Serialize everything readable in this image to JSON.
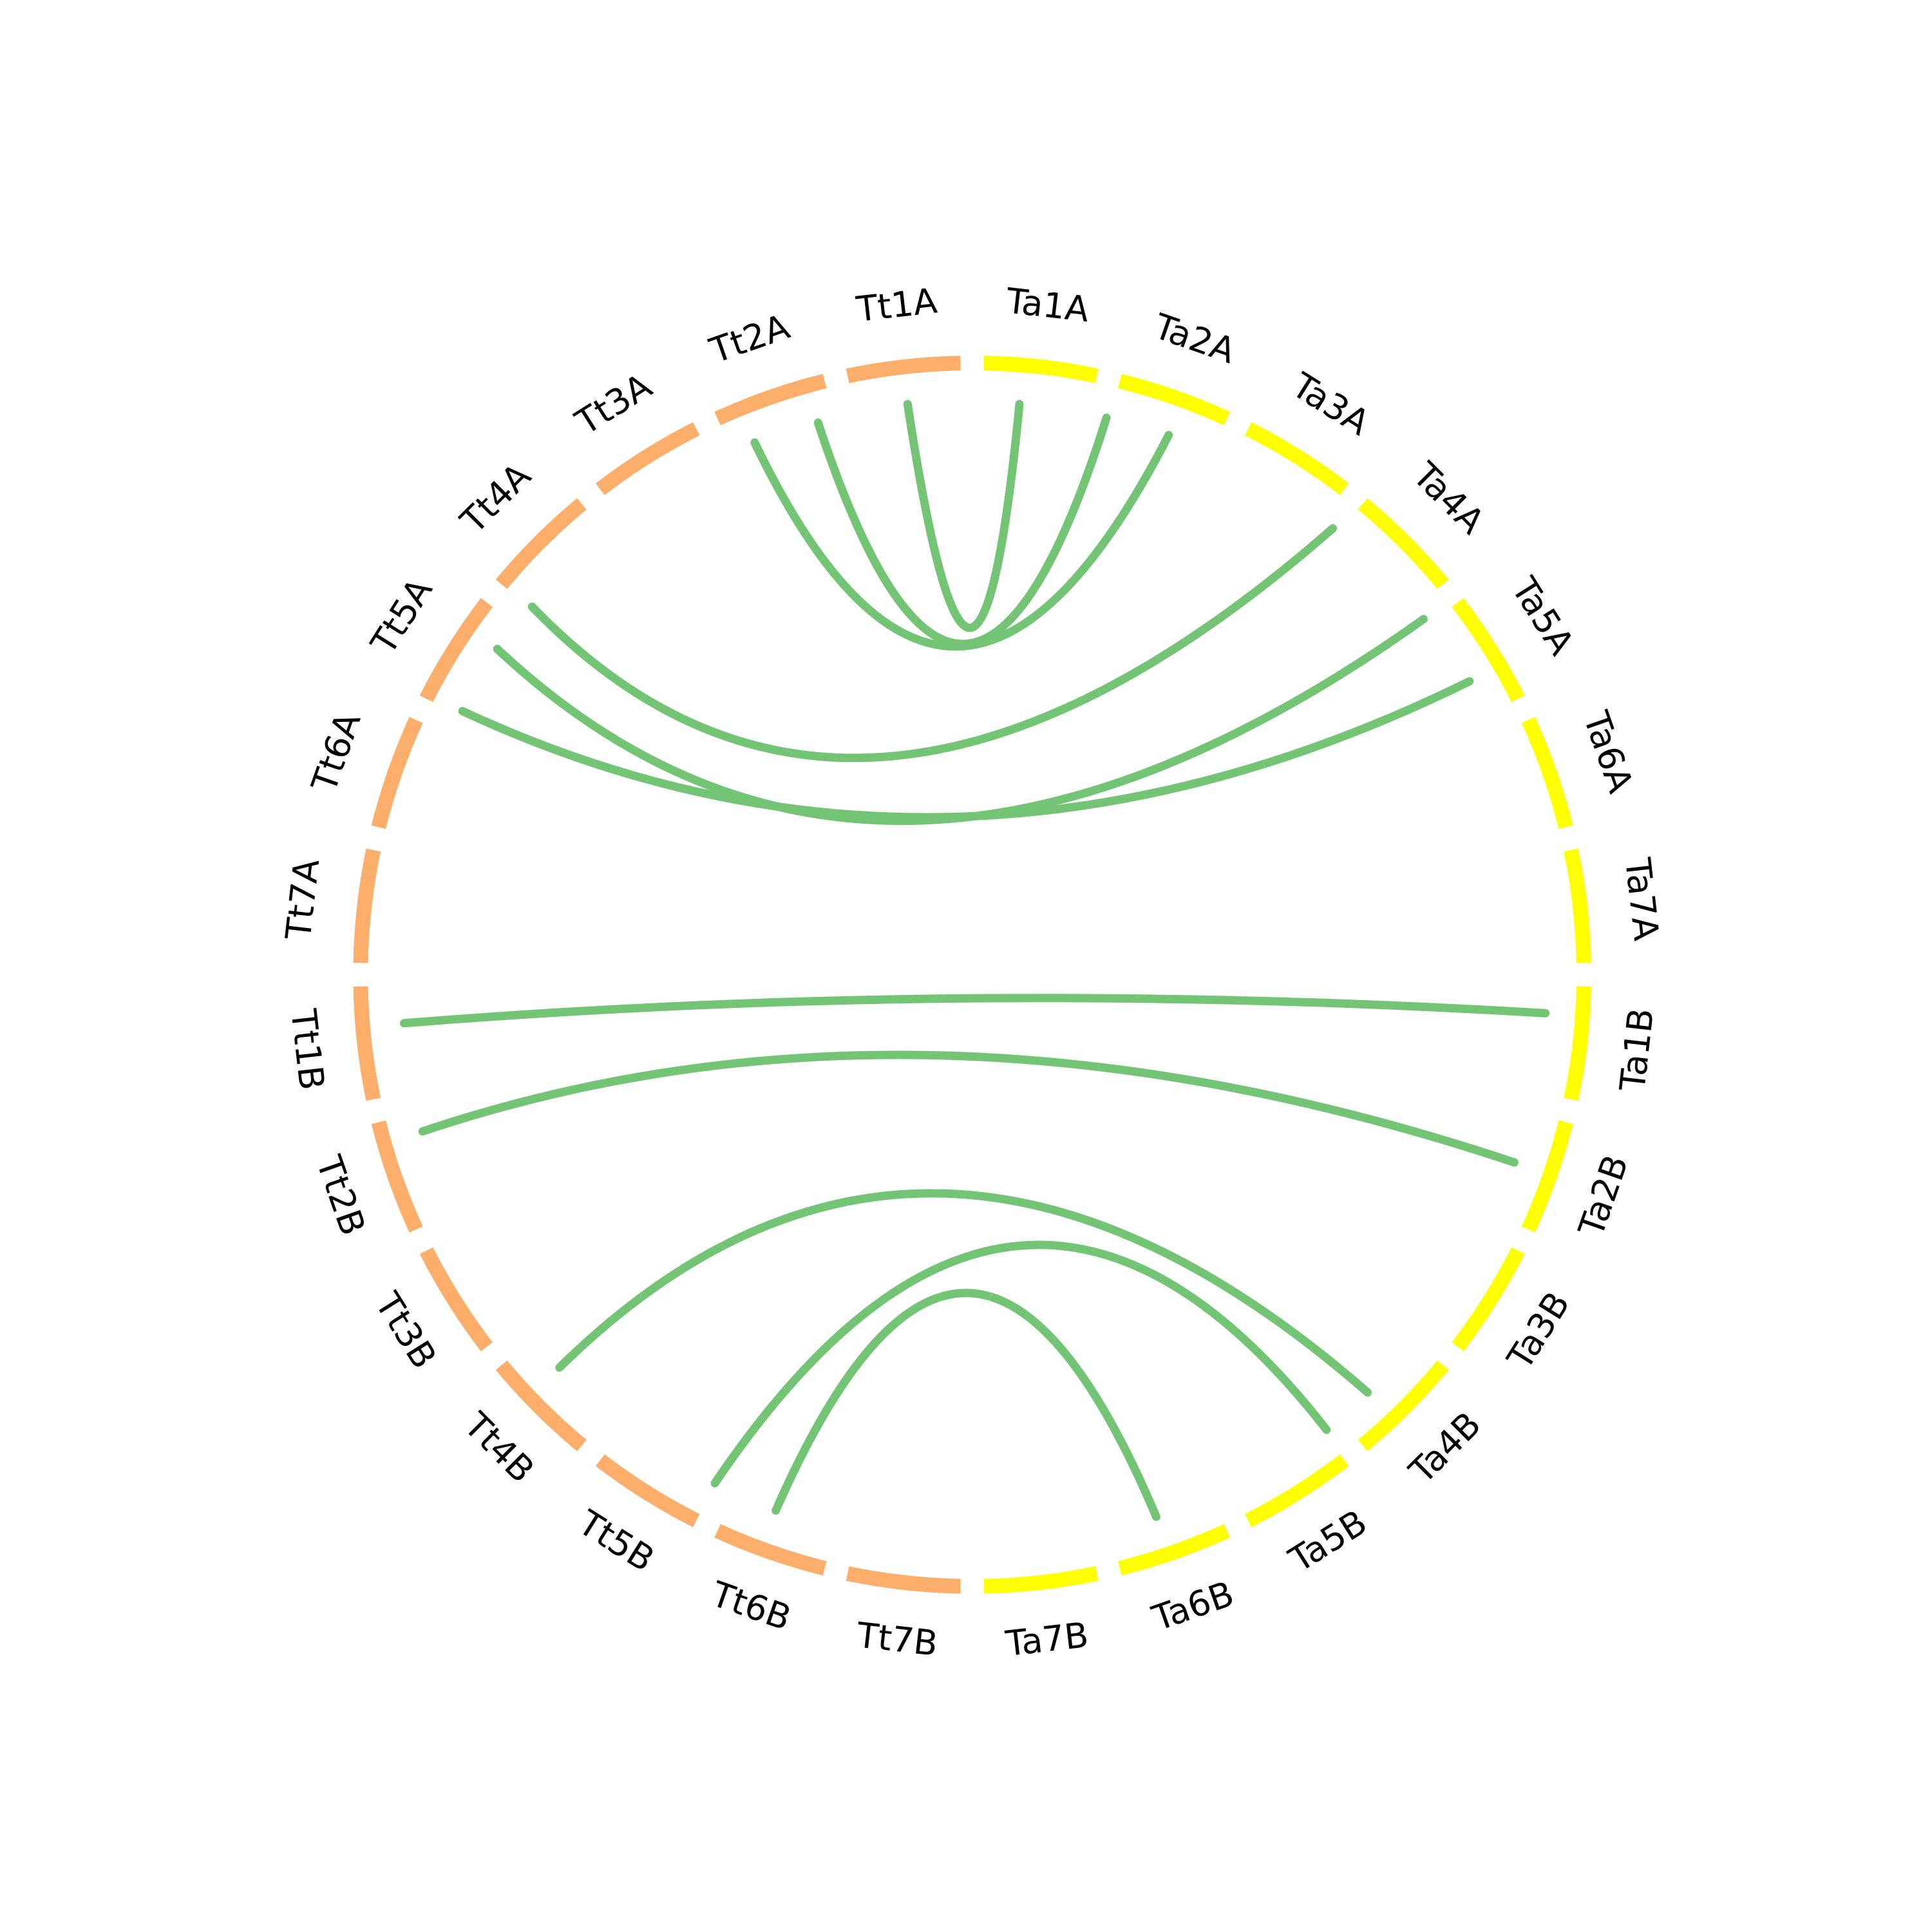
{
  "nodes": [
    {
      "label": "Ta1A"
    },
    {
      "label": "Ta2A"
    },
    {
      "label": "Ta3A"
    },
    {
      "label": "Ta4A"
    },
    {
      "label": "Ta5A"
    },
    {
      "label": "Ta6A"
    },
    {
      "label": "Ta7A"
    },
    {
      "label": "Ta1B"
    },
    {
      "label": "Ta2B"
    },
    {
      "label": "Ta3B"
    },
    {
      "label": "Ta4B"
    },
    {
      "label": "Ta5B"
    },
    {
      "label": "Ta6B"
    },
    {
      "label": "Ta7B"
    },
    {
      "label": "Tt7B"
    },
    {
      "label": "Tt6B"
    },
    {
      "label": "Tt5B"
    },
    {
      "label": "Tt4B"
    },
    {
      "label": "Tt3B"
    },
    {
      "label": "Tt2B"
    },
    {
      "label": "Tt1B"
    },
    {
      "label": "Tt7A"
    },
    {
      "label": "Tt6A"
    },
    {
      "label": "Tt5A"
    },
    {
      "label": "Tt4A"
    },
    {
      "label": "Tt3A"
    },
    {
      "label": "Tt2A"
    },
    {
      "label": "Tt1A"
    }
  ]
}
